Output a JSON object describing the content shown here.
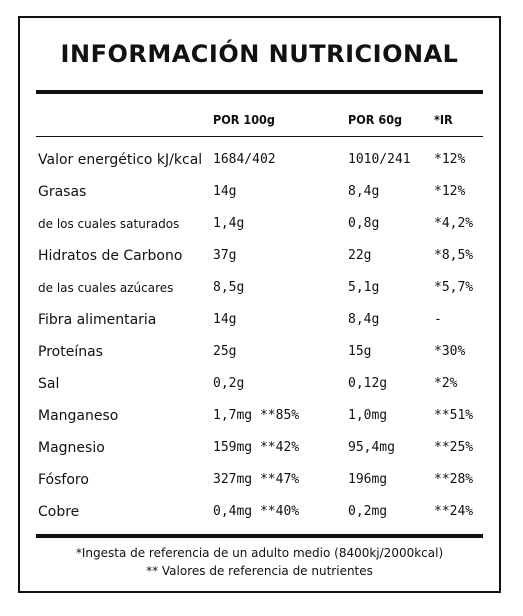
{
  "title": "INFORMACIÓN NUTRICIONAL",
  "columns": {
    "per100": "POR 100g",
    "per60": "POR 60g",
    "ir": "*IR"
  },
  "rows": [
    {
      "label": "Valor energético kJ/kcal",
      "per100": "1684/402",
      "per60": "1010/241",
      "ir": "*12%"
    },
    {
      "label": "Grasas",
      "per100": "14g",
      "per60": "8,4g",
      "ir": "*12%"
    },
    {
      "label": "de los cuales saturados",
      "per100": "1,4g",
      "per60": "0,8g",
      "ir": "*4,2%"
    },
    {
      "label": "Hidratos de Carbono",
      "per100": "37g",
      "per60": "22g",
      "ir": "*8,5%"
    },
    {
      "label": "de las cuales azúcares",
      "per100": "8,5g",
      "per60": "5,1g",
      "ir": "*5,7%"
    },
    {
      "label": "Fibra alimentaria",
      "per100": "14g",
      "per60": "8,4g",
      "ir": "-"
    },
    {
      "label": "Proteínas",
      "per100": "25g",
      "per60": "15g",
      "ir": "*30%"
    },
    {
      "label": "Sal",
      "per100": "0,2g",
      "per60": "0,12g",
      "ir": "*2%"
    },
    {
      "label": "Manganeso",
      "per100": "1,7mg **85%",
      "per60": "1,0mg",
      "ir": "**51%"
    },
    {
      "label": "Magnesio",
      "per100": "159mg **42%",
      "per60": "95,4mg",
      "ir": "**25%"
    },
    {
      "label": "Fósforo",
      "per100": "327mg **47%",
      "per60": "196mg",
      "ir": "**28%"
    },
    {
      "label": "Cobre",
      "per100": "0,4mg **40%",
      "per60": "0,2mg",
      "ir": "**24%"
    }
  ],
  "footnotes": {
    "line1": "*Ingesta de referencia de un adulto medio (8400kj/2000kcal)",
    "line2": "** Valores de referencia de nutrientes"
  }
}
